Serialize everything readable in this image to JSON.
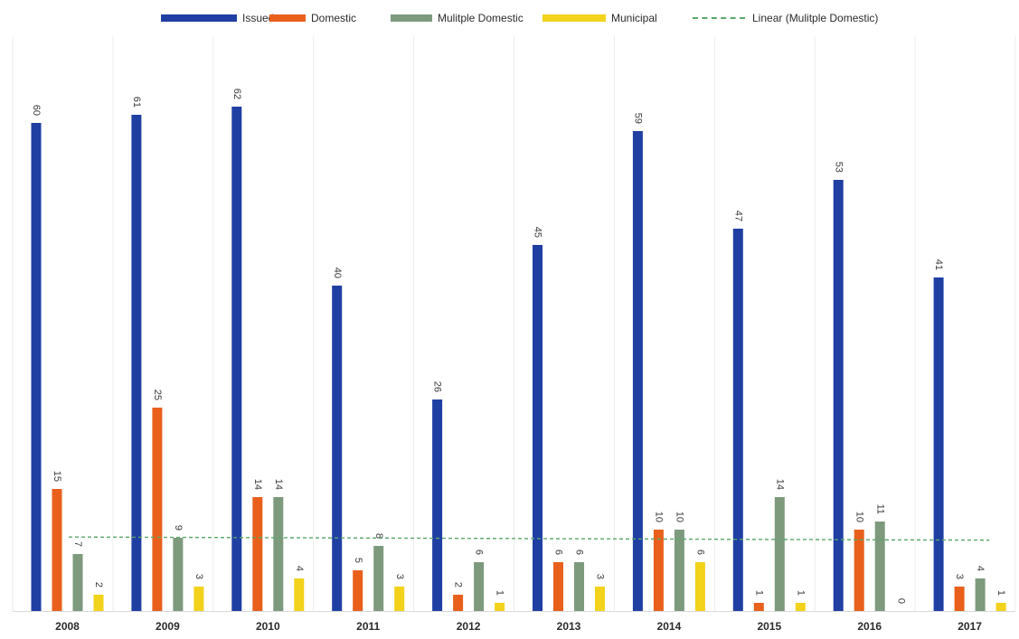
{
  "chart_data": {
    "type": "bar",
    "categories": [
      "2008",
      "2009",
      "2010",
      "2011",
      "2012",
      "2013",
      "2014",
      "2015",
      "2016",
      "2017"
    ],
    "series": [
      {
        "name": "Issued",
        "color": "#1f3fa3",
        "values": [
          60,
          61,
          62,
          40,
          26,
          45,
          59,
          47,
          53,
          41
        ]
      },
      {
        "name": "Domestic",
        "color": "#e8601c",
        "values": [
          15,
          25,
          14,
          5,
          2,
          6,
          10,
          1,
          10,
          3
        ]
      },
      {
        "name": "Mulitple Domestic",
        "color": "#7d9a7d",
        "values": [
          7,
          9,
          14,
          8,
          6,
          6,
          10,
          14,
          11,
          4
        ]
      },
      {
        "name": "Municipal",
        "color": "#f2d21b",
        "values": [
          2,
          3,
          4,
          3,
          1,
          3,
          6,
          1,
          0,
          1
        ]
      }
    ],
    "trendline": {
      "name": "Linear (Mulitple Domestic)",
      "of_series": "Mulitple Domestic",
      "type": "linear",
      "color": "#5aa86a",
      "style": "dashed"
    },
    "title": "",
    "xlabel": "",
    "ylabel": "",
    "ylim": [
      0,
      62
    ],
    "legend_position": "top",
    "grid": "vertical category separators",
    "data_labels": true
  }
}
